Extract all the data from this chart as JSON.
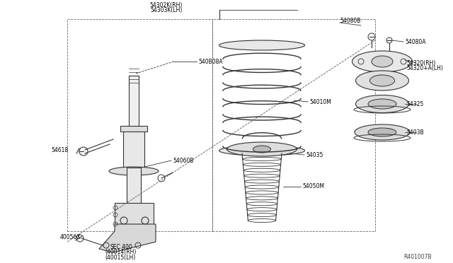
{
  "title": "",
  "bg_color": "#ffffff",
  "line_color": "#333333",
  "fig_width": 6.4,
  "fig_height": 3.72,
  "ref_number": "R401007B",
  "labels": {
    "54302K_RH": "54302K(RH)",
    "54303K_LH": "54303K(LH)",
    "540B08A": "540B08A",
    "54080B": "54080B",
    "54080A": "54080A",
    "54010M": "54010M",
    "54320_RH": "54320(RH)",
    "54320A_LH": "54320+A(LH)",
    "54325": "54325",
    "54035": "54035",
    "54050M": "54050M",
    "54038": "5403B",
    "54060B": "54060B",
    "54618": "54618",
    "40056X": "40056X",
    "SEC400": "SEC.400",
    "40014_RH": "(40014(RH)",
    "40015_LH": "(40015(LH)"
  }
}
